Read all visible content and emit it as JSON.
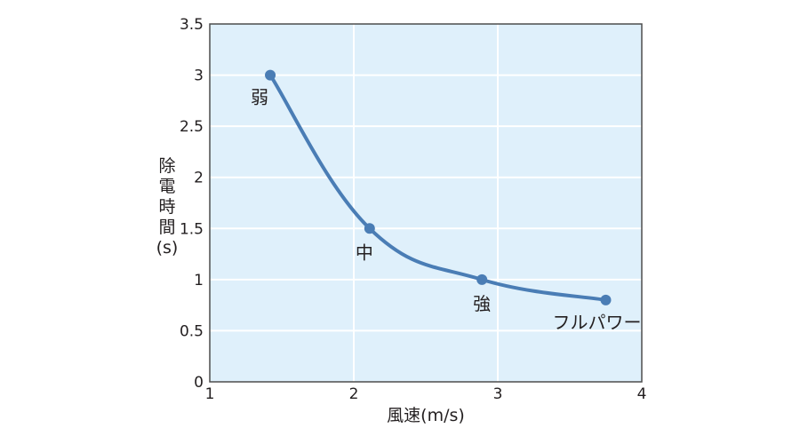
{
  "chart_data": {
    "type": "line",
    "title": "",
    "xlabel": "風速(m/s)",
    "ylabel": "除電時間(s)",
    "ylabel_lines": [
      "除",
      "電",
      "時",
      "間",
      "(s)"
    ],
    "xlim": [
      1,
      4
    ],
    "ylim": [
      0,
      3.5
    ],
    "xticks": [
      1,
      2,
      3,
      4
    ],
    "xtick_labels": [
      "1",
      "2",
      "3",
      "4"
    ],
    "yticks": [
      0,
      0.5,
      1,
      1.5,
      2,
      2.5,
      3,
      3.5
    ],
    "ytick_labels": [
      "0",
      "0.5",
      "1",
      "1.5",
      "2",
      "2.5",
      "3",
      "3.5"
    ],
    "grid": true,
    "legend": null,
    "smooth": true,
    "series": [
      {
        "name": "除電時間",
        "x": [
          1.42,
          2.11,
          2.89,
          3.75
        ],
        "y": [
          3.0,
          1.5,
          1.0,
          0.8
        ],
        "point_labels": [
          "弱",
          "中",
          "強",
          "フルパワー"
        ]
      }
    ]
  },
  "colors": {
    "plot_background": "#dff0fb",
    "grid": "#ffffff",
    "axis": "#4d4d4d",
    "line": "#4a7db5",
    "marker": "#4a7db5",
    "text": "#231f20"
  }
}
